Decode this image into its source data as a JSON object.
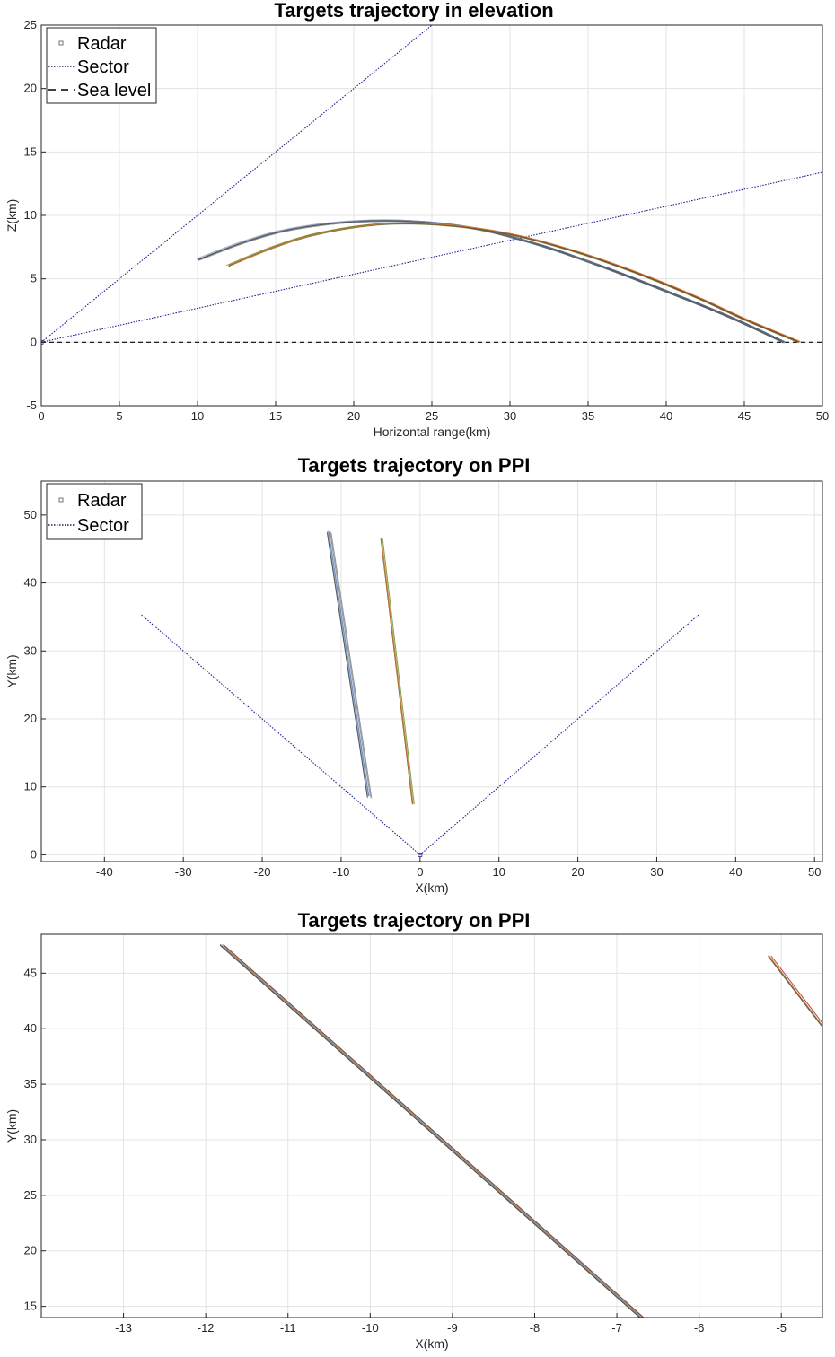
{
  "chart_data": [
    {
      "type": "line",
      "title": "Targets trajectory in elevation",
      "xlabel": "Horizontal range(km)",
      "ylabel": "Z(km)",
      "xlim": [
        0,
        50
      ],
      "ylim": [
        -5,
        25
      ],
      "xticks": [
        0,
        5,
        10,
        15,
        20,
        25,
        30,
        35,
        40,
        45,
        50
      ],
      "yticks": [
        -5,
        0,
        5,
        10,
        15,
        20,
        25
      ],
      "grid": true,
      "legend": {
        "placement": "top-left",
        "entries": [
          {
            "label": "Radar",
            "style": "marker"
          },
          {
            "label": "Sector",
            "style": "dotted"
          },
          {
            "label": "Sea level",
            "style": "dashed"
          }
        ]
      },
      "radar": {
        "x": 0,
        "y": 0
      },
      "sector_lines": [
        {
          "points": [
            [
              0,
              0
            ],
            [
              25,
              25
            ]
          ]
        },
        {
          "points": [
            [
              0,
              0
            ],
            [
              50,
              13.4
            ]
          ]
        }
      ],
      "sea_level": {
        "points": [
          [
            0,
            0
          ],
          [
            50,
            0
          ]
        ]
      },
      "trajectory_groups": [
        {
          "count": 8,
          "points": [
            [
              10,
              6.5
            ],
            [
              13,
              7.9
            ],
            [
              16,
              8.9
            ],
            [
              20,
              9.5
            ],
            [
              24,
              9.5
            ],
            [
              28,
              8.9
            ],
            [
              32,
              7.6
            ],
            [
              36,
              5.9
            ],
            [
              40,
              4.0
            ],
            [
              44,
              2.0
            ],
            [
              47.5,
              0
            ]
          ],
          "colors": [
            "#7f7f7f",
            "#3b6fb6",
            "#5a5a5a",
            "#8aa2c8",
            "#9b9b9b",
            "#2f4f7f",
            "#b0b0b0",
            "#4a4a4a"
          ]
        },
        {
          "count": 6,
          "points": [
            [
              12,
              6.0
            ],
            [
              15,
              7.5
            ],
            [
              18,
              8.6
            ],
            [
              22,
              9.3
            ],
            [
              26,
              9.2
            ],
            [
              30,
              8.5
            ],
            [
              34,
              7.2
            ],
            [
              38,
              5.5
            ],
            [
              42,
              3.5
            ],
            [
              45,
              1.8
            ],
            [
              48.5,
              0
            ]
          ],
          "colors": [
            "#d2691e",
            "#6b8e23",
            "#b22222",
            "#8b4513",
            "#556b2f",
            "#cd853f"
          ]
        }
      ]
    },
    {
      "type": "line",
      "title": "Targets trajectory on PPI",
      "xlabel": "X(km)",
      "ylabel": "Y(km)",
      "xlim": [
        -48,
        51
      ],
      "ylim": [
        -1,
        55
      ],
      "xticks": [
        -40,
        -30,
        -20,
        -10,
        0,
        10,
        20,
        30,
        40,
        50
      ],
      "yticks": [
        0,
        10,
        20,
        30,
        40,
        50
      ],
      "grid": true,
      "legend": {
        "placement": "top-left",
        "entries": [
          {
            "label": "Radar",
            "style": "marker"
          },
          {
            "label": "Sector",
            "style": "dotted"
          }
        ]
      },
      "radar": {
        "x": 0,
        "y": 0
      },
      "sector_lines": [
        {
          "points": [
            [
              0,
              0
            ],
            [
              -35.3,
              35.3
            ]
          ]
        },
        {
          "points": [
            [
              0,
              0
            ],
            [
              35.3,
              35.3
            ]
          ]
        }
      ],
      "trajectory_groups": [
        {
          "count": 8,
          "points": [
            [
              -11.5,
              47.5
            ],
            [
              -6.4,
              8.5
            ]
          ],
          "colors": [
            "#7f7f7f",
            "#3b6fb6",
            "#5a5a5a",
            "#8aa2c8",
            "#9b9b9b",
            "#2f4f7f",
            "#b0b0b0",
            "#4a4a4a"
          ]
        },
        {
          "count": 6,
          "points": [
            [
              -5.0,
              46.5
            ],
            [
              -1.0,
              7.5
            ]
          ],
          "colors": [
            "#d2691e",
            "#6b8e23",
            "#b22222",
            "#8b4513",
            "#556b2f",
            "#cd853f"
          ]
        }
      ]
    },
    {
      "type": "line",
      "title": "Targets trajectory on PPI",
      "xlabel": "X(km)",
      "ylabel": "Y(km)",
      "xlim": [
        -14,
        -4.5
      ],
      "ylim": [
        14,
        48.5
      ],
      "xticks": [
        -13,
        -12,
        -11,
        -10,
        -9,
        -8,
        -7,
        -6,
        -5
      ],
      "yticks": [
        15,
        20,
        25,
        30,
        35,
        40,
        45
      ],
      "grid": true,
      "trajectory_groups": [
        {
          "count": 12,
          "points": [
            [
              -11.8,
              47.5
            ],
            [
              -6.7,
              14
            ]
          ],
          "colors": [
            "#7f7f7f",
            "#3b6fb6",
            "#d2691e",
            "#6b8e23",
            "#b22222",
            "#5a5a5a",
            "#8aa2c8",
            "#8b4513",
            "#2f4f7f",
            "#556b2f",
            "#9b9b9b",
            "#4a4a4a"
          ]
        },
        {
          "count": 6,
          "points": [
            [
              -5.15,
              46.5
            ],
            [
              -4.5,
              40.2
            ]
          ],
          "colors": [
            "#7f7f7f",
            "#3b6fb6",
            "#d2691e",
            "#6b8e23",
            "#5a5a5a",
            "#b22222"
          ]
        }
      ]
    }
  ]
}
